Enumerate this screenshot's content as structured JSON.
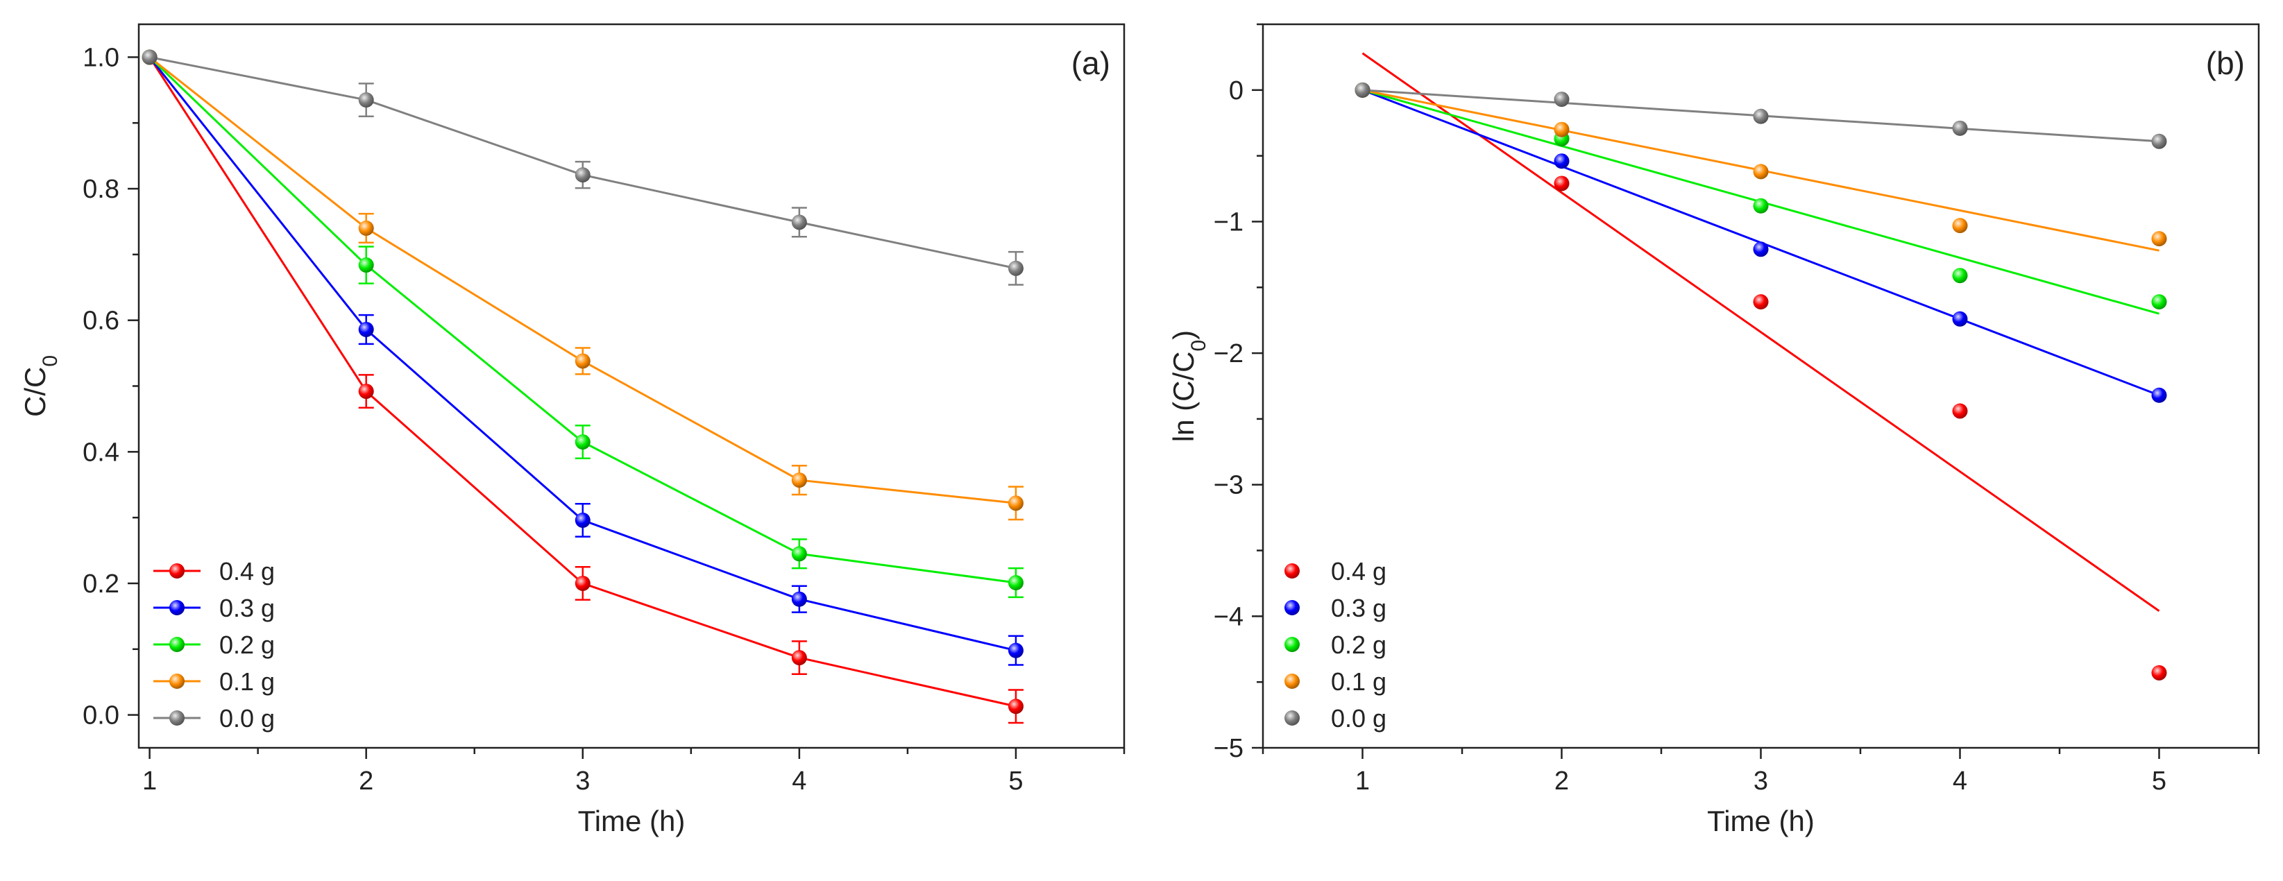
{
  "chart_data": [
    {
      "type": "line",
      "panel_label": "(a)",
      "xlabel": "Time (h)",
      "ylabel_main": "C/C",
      "ylabel_sub": "0",
      "x": [
        1,
        2,
        3,
        4,
        5
      ],
      "xlim": [
        0.95,
        5.5
      ],
      "ylim": [
        -0.05,
        1.05
      ],
      "xticks": [
        1,
        2,
        3,
        4,
        5
      ],
      "xtick_labels": [
        "1",
        "2",
        "3",
        "4",
        "5"
      ],
      "yticks": [
        0.0,
        0.2,
        0.4,
        0.6,
        0.8,
        1.0
      ],
      "ytick_labels": [
        "0.0",
        "0.2",
        "0.4",
        "0.6",
        "0.8",
        "1.0"
      ],
      "error_bars": true,
      "legend_position": "bottom-left",
      "series": [
        {
          "name": "0.4 g",
          "color": "#ff0000",
          "values": [
            1.0,
            0.492,
            0.2,
            0.087,
            0.013
          ],
          "errors": [
            0,
            0.025,
            0.025,
            0.025,
            0.025
          ]
        },
        {
          "name": "0.3 g",
          "color": "#0000ff",
          "values": [
            1.0,
            0.586,
            0.296,
            0.176,
            0.098
          ],
          "errors": [
            0,
            0.022,
            0.025,
            0.02,
            0.022
          ]
        },
        {
          "name": "0.2 g",
          "color": "#00ee00",
          "values": [
            1.0,
            0.684,
            0.415,
            0.245,
            0.201
          ],
          "errors": [
            0,
            0.028,
            0.025,
            0.022,
            0.022
          ]
        },
        {
          "name": "0.1 g",
          "color": "#ff8c00",
          "values": [
            1.0,
            0.74,
            0.538,
            0.357,
            0.322
          ],
          "errors": [
            0,
            0.022,
            0.02,
            0.022,
            0.025
          ]
        },
        {
          "name": "0.0 g",
          "color": "#808080",
          "values": [
            1.0,
            0.935,
            0.821,
            0.749,
            0.679
          ],
          "errors": [
            0,
            0.025,
            0.02,
            0.022,
            0.025
          ]
        }
      ]
    },
    {
      "type": "scatter",
      "panel_label": "(b)",
      "xlabel": "Time (h)",
      "ylabel_main": "ln (C/C",
      "ylabel_sub": "0",
      "ylabel_end": ")",
      "x": [
        1,
        2,
        3,
        4,
        5
      ],
      "xlim": [
        0.5,
        5.5
      ],
      "ylim": [
        -5,
        0.5
      ],
      "xticks": [
        1,
        2,
        3,
        4,
        5
      ],
      "xtick_labels": [
        "1",
        "2",
        "3",
        "4",
        "5"
      ],
      "yticks": [
        -5,
        -4,
        -3,
        -2,
        -1,
        0
      ],
      "ytick_labels": [
        "−5",
        "−4",
        "−3",
        "−2",
        "−1",
        "0"
      ],
      "legend_position": "bottom-left",
      "series": [
        {
          "name": "0.4 g",
          "color": "#ff0000",
          "values": [
            0,
            -0.71,
            -1.61,
            -2.44,
            -4.43
          ],
          "fit": [
            0.28,
            -3.96
          ]
        },
        {
          "name": "0.3 g",
          "color": "#0000ff",
          "values": [
            0,
            -0.54,
            -1.21,
            -1.74,
            -2.32
          ],
          "fit": [
            0.0,
            -2.32
          ]
        },
        {
          "name": "0.2 g",
          "color": "#00ee00",
          "values": [
            0,
            -0.37,
            -0.88,
            -1.41,
            -1.61
          ],
          "fit": [
            0.0,
            -1.7
          ]
        },
        {
          "name": "0.1 g",
          "color": "#ff8c00",
          "values": [
            0,
            -0.3,
            -0.62,
            -1.03,
            -1.13
          ],
          "fit": [
            0.0,
            -1.22
          ]
        },
        {
          "name": "0.0 g",
          "color": "#808080",
          "values": [
            0,
            -0.07,
            -0.2,
            -0.29,
            -0.39
          ],
          "fit": [
            0.0,
            -0.39
          ]
        }
      ]
    }
  ]
}
